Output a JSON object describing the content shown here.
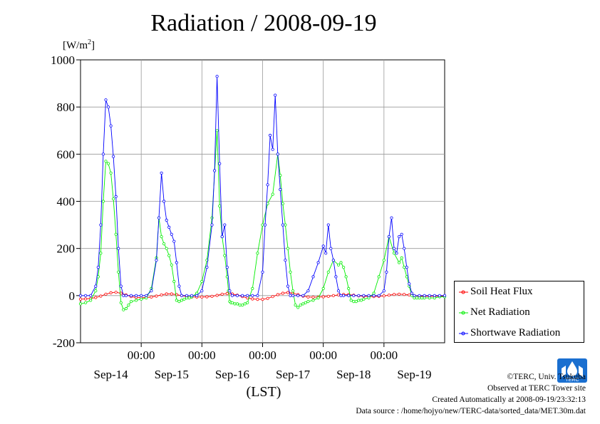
{
  "header": {
    "title": "Radiation / 2008-09-19",
    "unit_main": "[W/m",
    "unit_sup": "2",
    "unit_close": "]"
  },
  "chart_data": {
    "type": "line",
    "title": "Radiation / 2008-09-19",
    "ylabel": "[W/m2]",
    "xlabel": "(LST)",
    "ylim": [
      -200,
      1000
    ],
    "yticks": [
      "1000",
      "800",
      "600",
      "400",
      "200",
      "0",
      "-200"
    ],
    "x_time_labels": [
      "00:00",
      "00:00",
      "00:00",
      "00:00",
      "00:00"
    ],
    "x_date_labels": [
      "Sep-14",
      "Sep-15",
      "Sep-16",
      "Sep-17",
      "Sep-18",
      "Sep-19"
    ],
    "grid": true,
    "legend_placement": "right",
    "series": [
      {
        "name": "Soil Heat Flux",
        "color": "#ff0000",
        "hours": [
          0,
          2,
          4,
          6,
          8,
          10,
          12,
          14,
          16,
          18,
          20,
          22,
          24,
          26,
          28,
          30,
          32,
          34,
          36,
          38,
          40,
          42,
          44,
          46,
          48,
          50,
          52,
          54,
          56,
          58,
          60,
          62,
          64,
          66,
          68,
          70,
          72,
          74,
          76,
          78,
          80,
          82,
          84,
          86,
          88,
          90,
          92,
          94,
          96,
          98,
          100,
          102,
          104,
          106,
          108,
          110,
          112,
          114,
          116,
          118,
          120,
          122,
          124,
          126,
          128,
          130,
          132,
          134,
          136,
          138,
          140,
          142,
          144
        ],
        "values": [
          -15,
          -14,
          -12,
          -8,
          -2,
          6,
          12,
          14,
          10,
          3,
          -4,
          -8,
          -9,
          -8,
          -6,
          -2,
          3,
          7,
          7,
          4,
          0,
          -4,
          -6,
          -6,
          -6,
          -5,
          -3,
          1,
          6,
          9,
          7,
          2,
          -4,
          -10,
          -14,
          -16,
          -16,
          -12,
          -4,
          4,
          10,
          13,
          10,
          4,
          -2,
          -6,
          -7,
          -6,
          -5,
          -3,
          0,
          3,
          5,
          4,
          2,
          -1,
          -3,
          -4,
          -4,
          -3,
          -1,
          2,
          5,
          6,
          5,
          3,
          0,
          -2,
          -3,
          -3,
          -3,
          -2,
          -2
        ]
      },
      {
        "name": "Net Radiation",
        "color": "#00ee00",
        "hours": [
          0,
          2,
          4,
          6,
          7,
          8,
          9,
          10,
          11,
          12,
          13,
          14,
          15,
          16,
          17,
          18,
          19,
          20,
          22,
          24,
          26,
          28,
          30,
          31,
          32,
          33,
          34,
          35,
          36,
          37,
          38,
          39,
          40,
          41,
          42,
          43,
          44,
          46,
          48,
          50,
          52,
          54,
          55,
          56,
          57,
          58,
          58.5,
          59,
          59.5,
          60,
          61,
          62,
          63,
          64,
          65,
          66,
          68,
          70,
          72,
          74,
          76,
          78,
          79,
          80,
          81,
          82,
          83,
          84,
          85,
          86,
          87,
          88,
          89,
          90,
          92,
          94,
          96,
          98,
          100,
          102,
          103,
          104,
          105,
          106,
          107,
          108,
          109,
          110,
          111,
          112,
          114,
          116,
          118,
          120,
          122,
          124,
          126,
          127,
          128,
          129,
          130,
          131,
          132,
          133,
          134,
          135,
          136,
          138,
          140,
          142,
          144
        ],
        "values": [
          -35,
          -30,
          -20,
          20,
          80,
          180,
          400,
          570,
          560,
          520,
          410,
          260,
          100,
          -30,
          -60,
          -55,
          -40,
          -25,
          -20,
          -15,
          -10,
          30,
          160,
          330,
          250,
          220,
          200,
          170,
          130,
          60,
          -20,
          -25,
          -20,
          -15,
          -10,
          -10,
          -5,
          10,
          60,
          150,
          330,
          700,
          380,
          250,
          170,
          80,
          20,
          -25,
          -30,
          -30,
          -35,
          -35,
          -40,
          -40,
          -35,
          -30,
          30,
          180,
          300,
          390,
          430,
          600,
          510,
          390,
          300,
          200,
          100,
          20,
          -40,
          -50,
          -40,
          -35,
          -30,
          -25,
          -20,
          -10,
          30,
          100,
          150,
          130,
          140,
          120,
          80,
          30,
          -20,
          -25,
          -25,
          -20,
          -20,
          -15,
          -10,
          10,
          80,
          150,
          250,
          180,
          140,
          160,
          120,
          80,
          40,
          0,
          -10,
          -10,
          -10,
          -10,
          -10,
          -10,
          -10,
          -5,
          -5
        ]
      },
      {
        "name": "Shortwave Radiation",
        "color": "#0000ff",
        "hours": [
          0,
          2,
          4,
          6,
          7,
          8,
          9,
          10,
          11,
          12,
          13,
          14,
          15,
          16,
          17,
          18,
          20,
          22,
          24,
          26,
          28,
          30,
          31,
          32,
          33,
          34,
          35,
          36,
          37,
          38,
          39,
          40,
          42,
          44,
          46,
          48,
          50,
          52,
          53,
          54,
          55,
          56,
          57,
          58,
          59,
          60,
          62,
          64,
          66,
          68,
          70,
          72,
          73,
          74,
          75,
          76,
          77,
          78,
          79,
          80,
          81,
          82,
          83,
          84,
          86,
          88,
          90,
          92,
          94,
          96,
          97,
          98,
          99,
          100,
          101,
          102,
          103,
          104,
          106,
          108,
          110,
          112,
          114,
          116,
          118,
          120,
          121,
          122,
          123,
          124,
          125,
          126,
          127,
          128,
          129,
          130,
          131,
          132,
          134,
          136,
          138,
          140,
          142,
          144
        ],
        "values": [
          0,
          0,
          0,
          40,
          120,
          300,
          600,
          830,
          800,
          720,
          590,
          420,
          200,
          40,
          0,
          0,
          0,
          0,
          0,
          0,
          20,
          150,
          330,
          520,
          400,
          320,
          290,
          260,
          230,
          140,
          40,
          0,
          0,
          0,
          0,
          20,
          120,
          300,
          530,
          930,
          560,
          250,
          300,
          120,
          20,
          0,
          0,
          0,
          0,
          0,
          0,
          100,
          300,
          470,
          680,
          620,
          850,
          600,
          450,
          300,
          150,
          40,
          0,
          0,
          0,
          0,
          20,
          80,
          140,
          210,
          180,
          300,
          200,
          150,
          80,
          20,
          0,
          0,
          0,
          0,
          0,
          0,
          0,
          0,
          0,
          20,
          100,
          250,
          330,
          200,
          180,
          250,
          260,
          200,
          120,
          50,
          10,
          0,
          0,
          0,
          0,
          0,
          0,
          0
        ]
      }
    ]
  },
  "footer": {
    "copyright": "©TERC, Univ. Tsukuba",
    "observed": "Observed at TERC Tower site",
    "created": "Created Automatically at 2008-09-19/23:32:13",
    "source": "Data source : /home/hojyo/new/TERC-data/sorted_data/MET.30m.dat"
  },
  "logo": {
    "text": "TERC",
    "color": "#1a6fd0"
  }
}
